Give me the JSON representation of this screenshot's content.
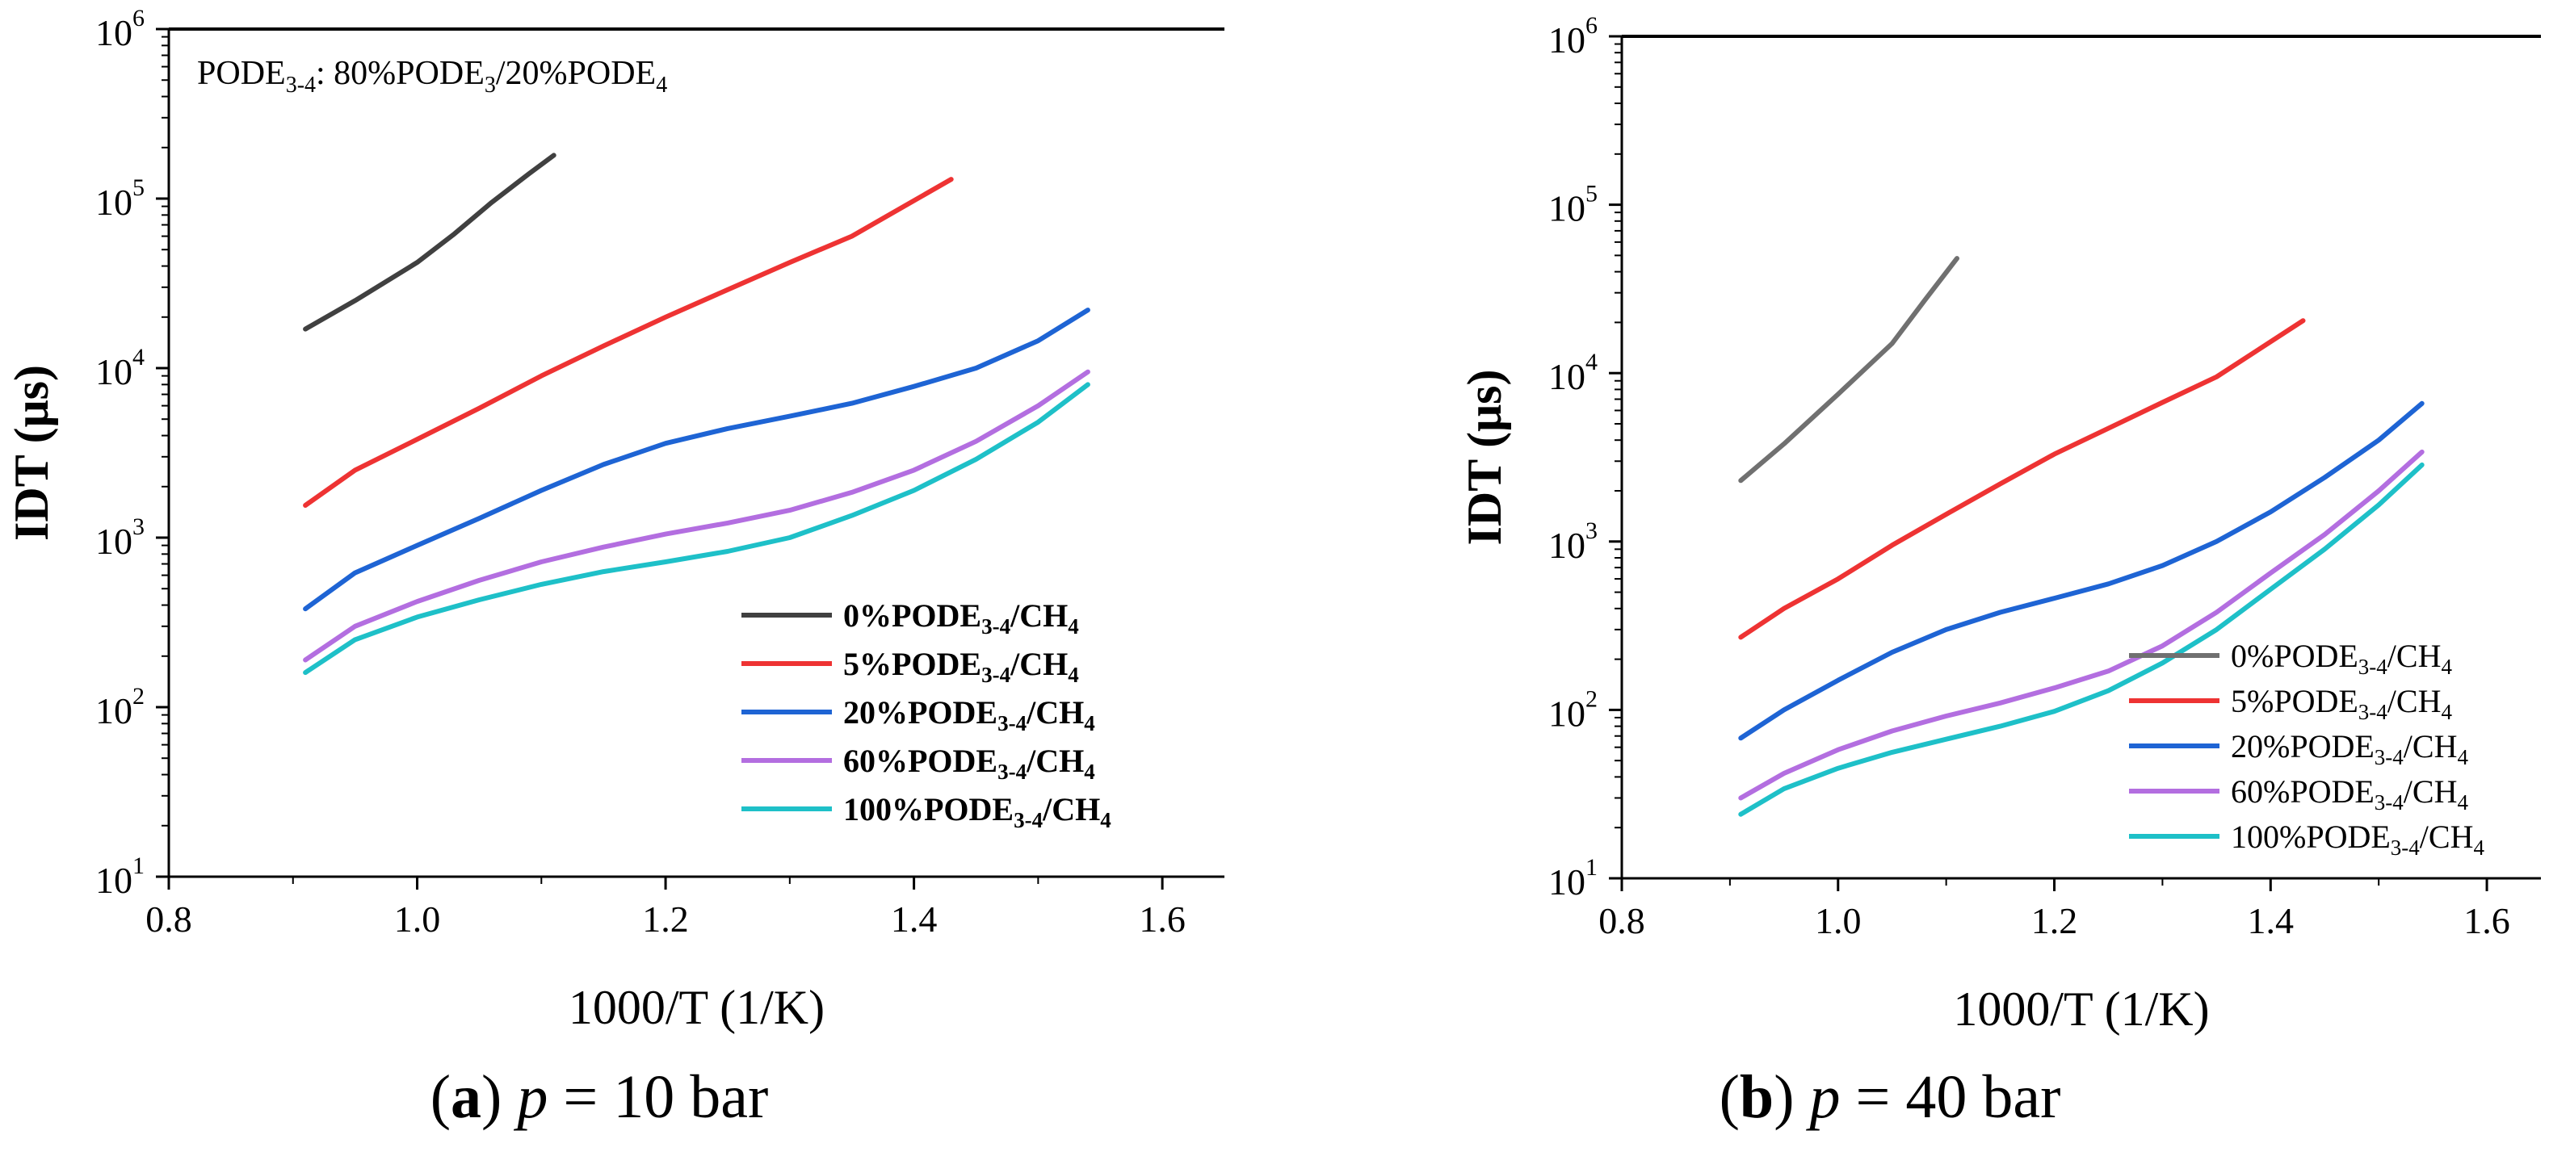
{
  "chart_data": [
    {
      "type": "line",
      "panel_label": "a",
      "caption_var": "p",
      "caption_eq": " = 10 bar",
      "annotation": {
        "prefix": "PODE",
        "sub1": "3-4",
        "mid1": ": 80%PODE",
        "sub2": "3",
        "mid2": "/20%PODE",
        "sub3": "4"
      },
      "xlabel": "1000/T (1/K)",
      "ylabel": "IDT (μs)",
      "xlim": [
        0.8,
        1.65
      ],
      "ylim": [
        10,
        1000000
      ],
      "yscale": "log",
      "xticks": [
        "0.8",
        "1.0",
        "1.2",
        "1.4",
        "1.6"
      ],
      "yticks": [
        {
          "base": "10",
          "exp": "1"
        },
        {
          "base": "10",
          "exp": "2"
        },
        {
          "base": "10",
          "exp": "3"
        },
        {
          "base": "10",
          "exp": "4"
        },
        {
          "base": "10",
          "exp": "5"
        },
        {
          "base": "10",
          "exp": "6"
        }
      ],
      "grid": false,
      "legend_position": "lower-right",
      "series": [
        {
          "name": "0%PODE3-4/CH4",
          "label": {
            "pre": "0%PODE",
            "sub1": "3-4",
            "mid": "/CH",
            "sub2": "4"
          },
          "color": "#404040",
          "x": [
            0.91,
            0.95,
            1.0,
            1.03,
            1.06,
            1.09,
            1.11
          ],
          "y": [
            17000,
            25000,
            42000,
            62000,
            95000,
            140000,
            180000
          ]
        },
        {
          "name": "5%PODE3-4/CH4",
          "label": {
            "pre": "5%PODE",
            "sub1": "3-4",
            "mid": "/CH",
            "sub2": "4"
          },
          "color": "#ee3333",
          "x": [
            0.91,
            0.95,
            1.0,
            1.05,
            1.1,
            1.15,
            1.2,
            1.25,
            1.3,
            1.35,
            1.43
          ],
          "y": [
            1550,
            2500,
            3800,
            5800,
            9000,
            13500,
            20000,
            29000,
            42000,
            60000,
            130000
          ]
        },
        {
          "name": "20%PODE3-4/CH4",
          "label": {
            "pre": "20%PODE",
            "sub1": "3-4",
            "mid": "/CH",
            "sub2": "4"
          },
          "color": "#1e64d4",
          "x": [
            0.91,
            0.95,
            1.0,
            1.05,
            1.1,
            1.15,
            1.2,
            1.25,
            1.3,
            1.35,
            1.4,
            1.45,
            1.5,
            1.54
          ],
          "y": [
            380,
            620,
            900,
            1300,
            1900,
            2700,
            3600,
            4400,
            5200,
            6200,
            7800,
            10000,
            14500,
            22000
          ]
        },
        {
          "name": "60%PODE3-4/CH4",
          "label": {
            "pre": "60%PODE",
            "sub1": "3-4",
            "mid": "/CH",
            "sub2": "4"
          },
          "color": "#b36ee0",
          "x": [
            0.91,
            0.95,
            1.0,
            1.05,
            1.1,
            1.15,
            1.2,
            1.25,
            1.3,
            1.35,
            1.4,
            1.45,
            1.5,
            1.54
          ],
          "y": [
            190,
            300,
            420,
            560,
            720,
            880,
            1050,
            1220,
            1450,
            1850,
            2500,
            3700,
            6000,
            9500
          ]
        },
        {
          "name": "100%PODE3-4/CH4",
          "label": {
            "pre": "100%PODE",
            "sub1": "3-4",
            "mid": "/CH",
            "sub2": "4"
          },
          "color": "#1ec0c8",
          "x": [
            0.91,
            0.95,
            1.0,
            1.05,
            1.1,
            1.15,
            1.2,
            1.25,
            1.3,
            1.35,
            1.4,
            1.45,
            1.5,
            1.54
          ],
          "y": [
            160,
            250,
            340,
            430,
            530,
            630,
            720,
            830,
            1000,
            1350,
            1900,
            2900,
            4800,
            8000
          ]
        }
      ]
    },
    {
      "type": "line",
      "panel_label": "b",
      "caption_var": "p",
      "caption_eq": " = 40 bar",
      "xlabel": "1000/T (1/K)",
      "ylabel": "IDT (μs)",
      "xlim": [
        0.8,
        1.65
      ],
      "ylim": [
        10,
        1000000
      ],
      "yscale": "log",
      "xticks": [
        "0.8",
        "1.0",
        "1.2",
        "1.4",
        "1.6"
      ],
      "yticks": [
        {
          "base": "10",
          "exp": "1"
        },
        {
          "base": "10",
          "exp": "2"
        },
        {
          "base": "10",
          "exp": "3"
        },
        {
          "base": "10",
          "exp": "4"
        },
        {
          "base": "10",
          "exp": "5"
        },
        {
          "base": "10",
          "exp": "6"
        }
      ],
      "grid": false,
      "legend_position": "lower-right",
      "series": [
        {
          "name": "0%PODE3-4/CH4",
          "label": {
            "pre": "0%PODE",
            "sub1": "3-4",
            "mid": "/CH",
            "sub2": "4"
          },
          "color": "#707070",
          "x": [
            0.91,
            0.95,
            1.0,
            1.05,
            1.08,
            1.11
          ],
          "y": [
            2300,
            3800,
            7500,
            15000,
            27000,
            48000
          ]
        },
        {
          "name": "5%PODE3-4/CH4",
          "label": {
            "pre": "5%PODE",
            "sub1": "3-4",
            "mid": "/CH",
            "sub2": "4"
          },
          "color": "#ee3333",
          "x": [
            0.91,
            0.95,
            1.0,
            1.05,
            1.1,
            1.15,
            1.2,
            1.25,
            1.3,
            1.35,
            1.43
          ],
          "y": [
            270,
            400,
            600,
            950,
            1450,
            2200,
            3300,
            4700,
            6700,
            9500,
            20500
          ]
        },
        {
          "name": "20%PODE3-4/CH4",
          "label": {
            "pre": "20%PODE",
            "sub1": "3-4",
            "mid": "/CH",
            "sub2": "4"
          },
          "color": "#1e64d4",
          "x": [
            0.91,
            0.95,
            1.0,
            1.05,
            1.1,
            1.15,
            1.2,
            1.25,
            1.3,
            1.35,
            1.4,
            1.45,
            1.5,
            1.54
          ],
          "y": [
            68,
            100,
            150,
            220,
            300,
            380,
            460,
            560,
            720,
            1000,
            1500,
            2400,
            4000,
            6600
          ]
        },
        {
          "name": "60%PODE3-4/CH4",
          "label": {
            "pre": "60%PODE",
            "sub1": "3-4",
            "mid": "/CH",
            "sub2": "4"
          },
          "color": "#b36ee0",
          "x": [
            0.91,
            0.95,
            1.0,
            1.05,
            1.1,
            1.15,
            1.2,
            1.25,
            1.3,
            1.35,
            1.4,
            1.45,
            1.5,
            1.54
          ],
          "y": [
            30,
            42,
            58,
            75,
            92,
            110,
            135,
            170,
            240,
            380,
            650,
            1100,
            2000,
            3400
          ]
        },
        {
          "name": "100%PODE3-4/CH4",
          "label": {
            "pre": "100%PODE",
            "sub1": "3-4",
            "mid": "/CH",
            "sub2": "4"
          },
          "color": "#1ec0c8",
          "x": [
            0.91,
            0.95,
            1.0,
            1.05,
            1.1,
            1.15,
            1.2,
            1.25,
            1.3,
            1.35,
            1.4,
            1.45,
            1.5,
            1.54
          ],
          "y": [
            24,
            34,
            45,
            56,
            67,
            80,
            98,
            130,
            190,
            300,
            520,
            900,
            1650,
            2850
          ]
        }
      ]
    }
  ]
}
